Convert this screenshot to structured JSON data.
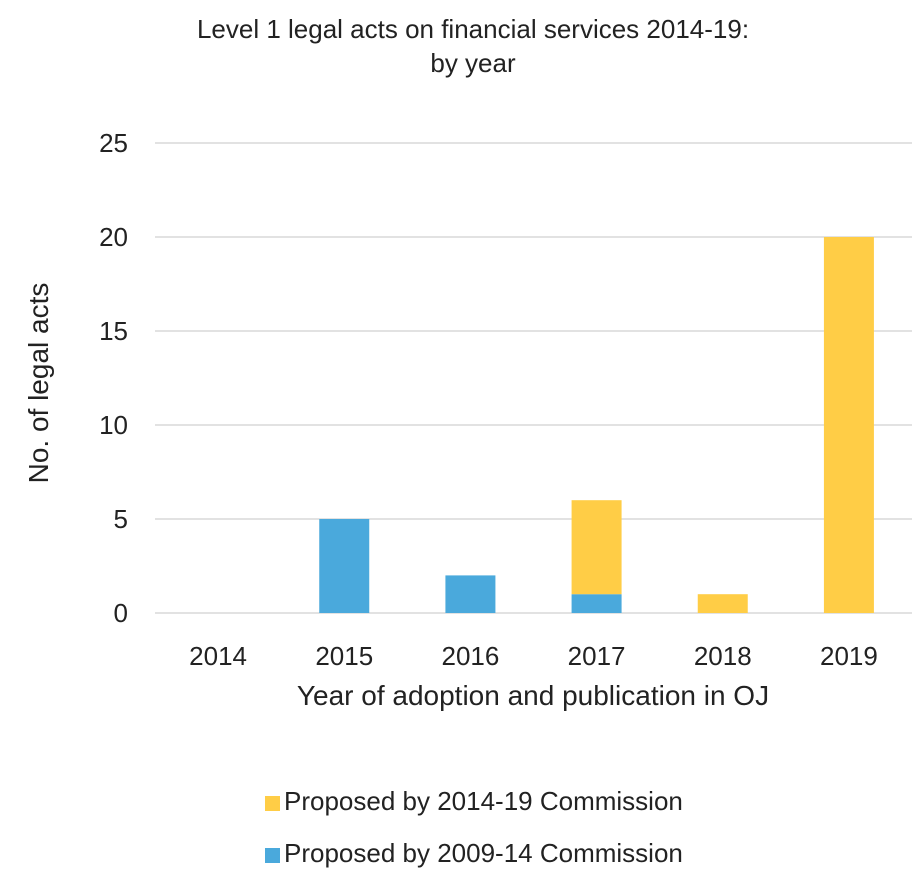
{
  "chart_data": {
    "type": "bar",
    "stacked": true,
    "title_lines": [
      "Level 1 legal acts on financial services 2014-19:",
      "by year"
    ],
    "xlabel": "Year of adoption and publication in OJ",
    "ylabel": "No. of legal acts",
    "categories": [
      "2014",
      "2015",
      "2016",
      "2017",
      "2018",
      "2019"
    ],
    "ylim": [
      0,
      25
    ],
    "yticks": [
      0,
      5,
      10,
      15,
      20,
      25
    ],
    "grid": true,
    "legend_position": "bottom",
    "series": [
      {
        "name": "Proposed by 2009-14 Commission",
        "color": "#4aa9dc",
        "values": [
          0,
          5,
          2,
          1,
          0,
          0
        ]
      },
      {
        "name": "Proposed by 2014-19 Commission",
        "color": "#ffcd46",
        "values": [
          0,
          0,
          0,
          5,
          1,
          20
        ]
      }
    ],
    "legend_order": [
      1,
      0
    ]
  }
}
